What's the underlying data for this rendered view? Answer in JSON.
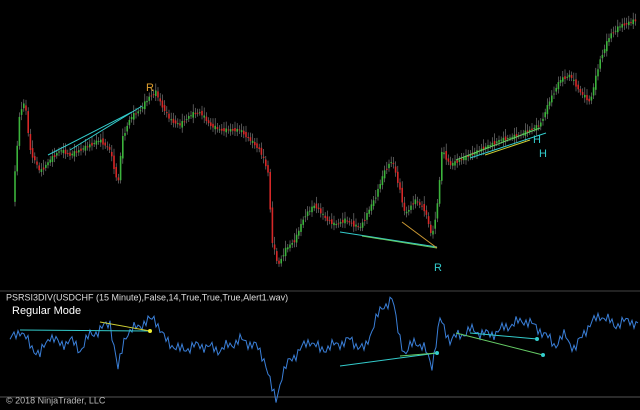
{
  "price_panel": {
    "signals": [
      "R",
      "R",
      "H",
      "H"
    ]
  },
  "indicator_panel": {
    "title": "PSRSI3DIV(USDCHF (15 Minute),False,14,True,True,True,Alert1.wav)",
    "mode": "Regular Mode"
  },
  "footer": "© 2018 NinjaTrader, LLC"
}
